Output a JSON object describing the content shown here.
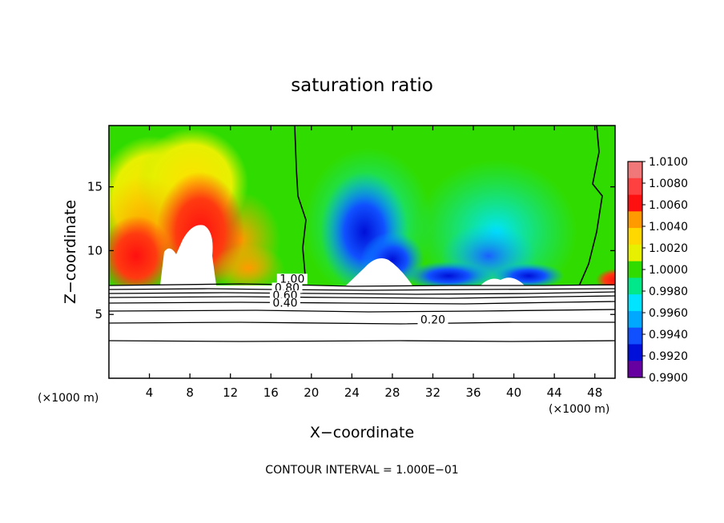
{
  "chart_data": {
    "type": "heatmap",
    "title": "saturation ratio",
    "xlabel": "X−coordinate",
    "ylabel": "Z−coordinate",
    "x_unit_left": "(×1000 m)",
    "x_unit_right": "(×1000 m)",
    "xlim": [
      0,
      50
    ],
    "ylim": [
      0,
      19.8
    ],
    "x_ticks": [
      4,
      8,
      12,
      16,
      20,
      24,
      28,
      32,
      36,
      40,
      44,
      48
    ],
    "y_ticks": [
      5,
      10,
      15
    ],
    "footer": "CONTOUR INTERVAL = 1.000E−01",
    "colorbar": {
      "levels": [
        "1.0100",
        "1.0080",
        "1.0060",
        "1.0040",
        "1.0020",
        "1.0000",
        "0.9980",
        "0.9960",
        "0.9940",
        "0.9920",
        "0.9900"
      ],
      "colors": [
        "#f07878",
        "#ff4040",
        "#ff1010",
        "#ff9a00",
        "#ffd800",
        "#e6f000",
        "#30dc00",
        "#00e88a",
        "#00e4ff",
        "#00a8ff",
        "#1050ff",
        "#0010d8",
        "#6600a0"
      ]
    },
    "contour_labels": [
      {
        "text": "1.00",
        "x": 18.1,
        "z": 7.5
      },
      {
        "text": "0.80",
        "x": 17.6,
        "z": 6.8
      },
      {
        "text": "0.60",
        "x": 17.4,
        "z": 6.2
      },
      {
        "text": "0.40",
        "x": 17.4,
        "z": 5.6
      },
      {
        "text": "0.20",
        "x": 32.0,
        "z": 4.3
      }
    ]
  }
}
